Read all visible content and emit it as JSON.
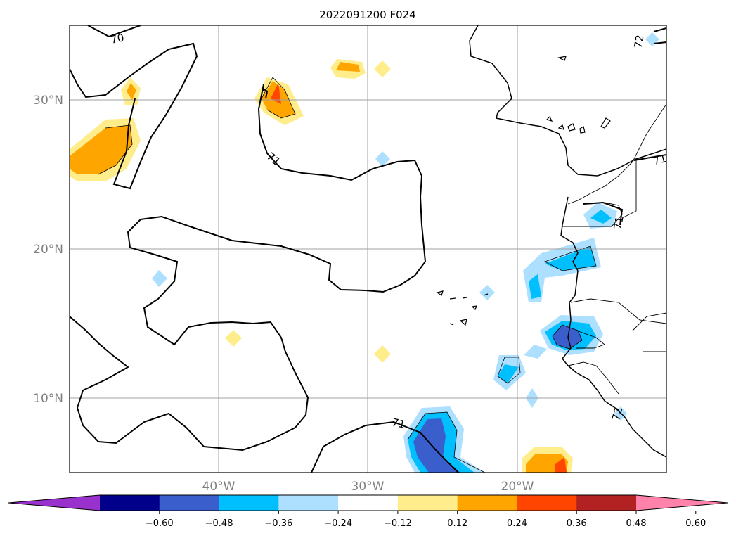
{
  "title": "2022091200 F024",
  "map": {
    "lon_range": [
      -50,
      -10
    ],
    "lat_range": [
      5,
      35
    ],
    "lat_ticks": [
      {
        "value": 30,
        "label": "30°N"
      },
      {
        "value": 20,
        "label": "20°N"
      },
      {
        "value": 10,
        "label": "10°N"
      }
    ],
    "lon_ticks": [
      {
        "value": -40,
        "label": "40°W"
      },
      {
        "value": -30,
        "label": "30°W"
      },
      {
        "value": -20,
        "label": "20°W"
      }
    ],
    "contour_labels": [
      "70",
      "71",
      "71",
      "71",
      "72",
      "72",
      "71"
    ],
    "gridlines": true
  },
  "colorbar": {
    "ticks": [
      "−0.60",
      "−0.48",
      "−0.36",
      "−0.24",
      "−0.12",
      "0.12",
      "0.24",
      "0.36",
      "0.48",
      "0.60"
    ],
    "colors": [
      "#9932CC",
      "#00008B",
      "#3A5FCD",
      "#00BFFF",
      "#ADDFFF",
      "#FFFFFF",
      "#FFEC8B",
      "#FFA500",
      "#FF4500",
      "#B22222",
      "#FF82AB"
    ],
    "extend": "both"
  }
}
